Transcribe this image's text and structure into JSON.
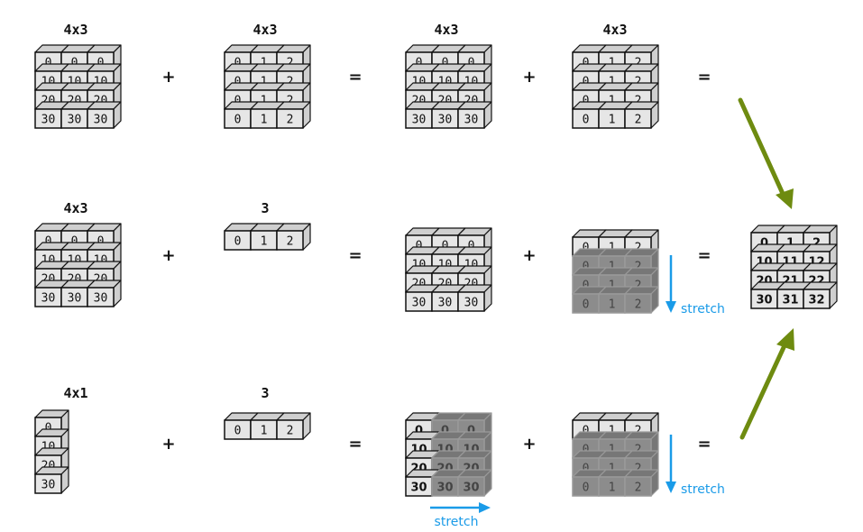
{
  "rows": [
    {
      "a_label": "4x3",
      "a_values": [
        [
          "0",
          "0",
          "0"
        ],
        [
          "10",
          "10",
          "10"
        ],
        [
          "20",
          "20",
          "20"
        ],
        [
          "30",
          "30",
          "30"
        ]
      ],
      "op1": "+",
      "b_label": "4x3",
      "b_values": [
        [
          "0",
          "1",
          "2"
        ],
        [
          "0",
          "1",
          "2"
        ],
        [
          "0",
          "1",
          "2"
        ],
        [
          "0",
          "1",
          "2"
        ]
      ],
      "op2": "=",
      "c_label": "4x3",
      "c_values": [
        [
          "0",
          "0",
          "0"
        ],
        [
          "10",
          "10",
          "10"
        ],
        [
          "20",
          "20",
          "20"
        ],
        [
          "30",
          "30",
          "30"
        ]
      ],
      "op3": "+",
      "d_label": "4x3",
      "d_values": [
        [
          "0",
          "1",
          "2"
        ],
        [
          "0",
          "1",
          "2"
        ],
        [
          "0",
          "1",
          "2"
        ],
        [
          "0",
          "1",
          "2"
        ]
      ],
      "op4": "="
    },
    {
      "a_label": "4x3",
      "a_values": [
        [
          "0",
          "0",
          "0"
        ],
        [
          "10",
          "10",
          "10"
        ],
        [
          "20",
          "20",
          "20"
        ],
        [
          "30",
          "30",
          "30"
        ]
      ],
      "op1": "+",
      "b_label": "3",
      "b_values": [
        [
          "0",
          "1",
          "2"
        ]
      ],
      "op2": "=",
      "c_values": [
        [
          "0",
          "0",
          "0"
        ],
        [
          "10",
          "10",
          "10"
        ],
        [
          "20",
          "20",
          "20"
        ],
        [
          "30",
          "30",
          "30"
        ]
      ],
      "op3": "+",
      "d_values": [
        [
          "0",
          "1",
          "2"
        ],
        [
          "0",
          "1",
          "2"
        ],
        [
          "0",
          "1",
          "2"
        ],
        [
          "0",
          "1",
          "2"
        ]
      ],
      "d_stretch": "stretch",
      "op4": "="
    },
    {
      "a_label": "4x1",
      "a_values": [
        [
          "0"
        ],
        [
          "10"
        ],
        [
          "20"
        ],
        [
          "30"
        ]
      ],
      "op1": "+",
      "b_label": "3",
      "b_values": [
        [
          "0",
          "1",
          "2"
        ]
      ],
      "op2": "=",
      "c_values": [
        [
          "0",
          "0",
          "0"
        ],
        [
          "10",
          "10",
          "10"
        ],
        [
          "20",
          "20",
          "20"
        ],
        [
          "30",
          "30",
          "30"
        ]
      ],
      "c_stretch": "stretch",
      "op3": "+",
      "d_values": [
        [
          "0",
          "1",
          "2"
        ],
        [
          "0",
          "1",
          "2"
        ],
        [
          "0",
          "1",
          "2"
        ],
        [
          "0",
          "1",
          "2"
        ]
      ],
      "d_stretch": "stretch",
      "op4": "="
    }
  ],
  "result": {
    "values": [
      [
        "0",
        "1",
        "2"
      ],
      [
        "10",
        "11",
        "12"
      ],
      [
        "20",
        "21",
        "22"
      ],
      [
        "30",
        "31",
        "32"
      ]
    ]
  },
  "colors": {
    "cell_face": "#e6e6e6",
    "cell_side": "#cfcfcf",
    "ghost_face": "#8c8c8c",
    "ghost_side": "#777777",
    "stretch_blue": "#1a9be8",
    "arrow_green": "#6e8b10"
  }
}
